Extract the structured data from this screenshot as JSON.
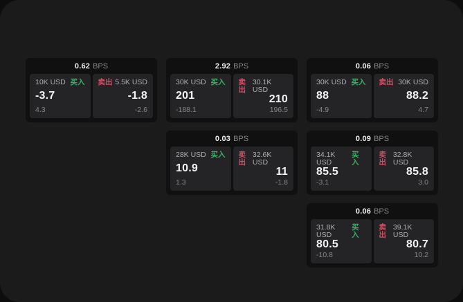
{
  "colors": {
    "buy_green": "#3fae68",
    "sell_red": "#ce5265",
    "window_bg": "#1b1b1c",
    "card_bg": "#101011",
    "tile_bg": "#242427"
  },
  "cards": [
    {
      "bps_value": "0.62",
      "bps_unit": "BPS",
      "buy": {
        "amount": "10K USD",
        "side_label": "买入",
        "price": "-3.7",
        "sub_value": "4.3"
      },
      "sell": {
        "side_label": "卖出",
        "amount": "5.5K USD",
        "price": "-1.8",
        "sub_value": "-2.6"
      }
    },
    {
      "bps_value": "2.92",
      "bps_unit": "BPS",
      "buy": {
        "amount": "30K USD",
        "side_label": "买入",
        "price": "201",
        "sub_value": "-188.1"
      },
      "sell": {
        "side_label": "卖出",
        "amount": "30.1K USD",
        "price": "210",
        "sub_value": "196.5"
      }
    },
    {
      "bps_value": "0.06",
      "bps_unit": "BPS",
      "buy": {
        "amount": "30K USD",
        "side_label": "买入",
        "price": "88",
        "sub_value": "-4.9"
      },
      "sell": {
        "side_label": "卖出",
        "amount": "30K USD",
        "price": "88.2",
        "sub_value": "4.7"
      }
    },
    {
      "bps_value": "0.03",
      "bps_unit": "BPS",
      "buy": {
        "amount": "28K USD",
        "side_label": "买入",
        "price": "10.9",
        "sub_value": "1.3"
      },
      "sell": {
        "side_label": "卖出",
        "amount": "32.6K USD",
        "price": "11",
        "sub_value": "-1.8"
      }
    },
    {
      "bps_value": "0.09",
      "bps_unit": "BPS",
      "buy": {
        "amount": "34.1K USD",
        "side_label": "买入",
        "price": "85.5",
        "sub_value": "-3.1"
      },
      "sell": {
        "side_label": "卖出",
        "amount": "32.8K USD",
        "price": "85.8",
        "sub_value": "3.0"
      }
    },
    {
      "bps_value": "0.06",
      "bps_unit": "BPS",
      "buy": {
        "amount": "31.8K USD",
        "side_label": "买入",
        "price": "80.5",
        "sub_value": "-10.8"
      },
      "sell": {
        "side_label": "卖出",
        "amount": "39.1K USD",
        "price": "80.7",
        "sub_value": "10.2"
      }
    }
  ]
}
